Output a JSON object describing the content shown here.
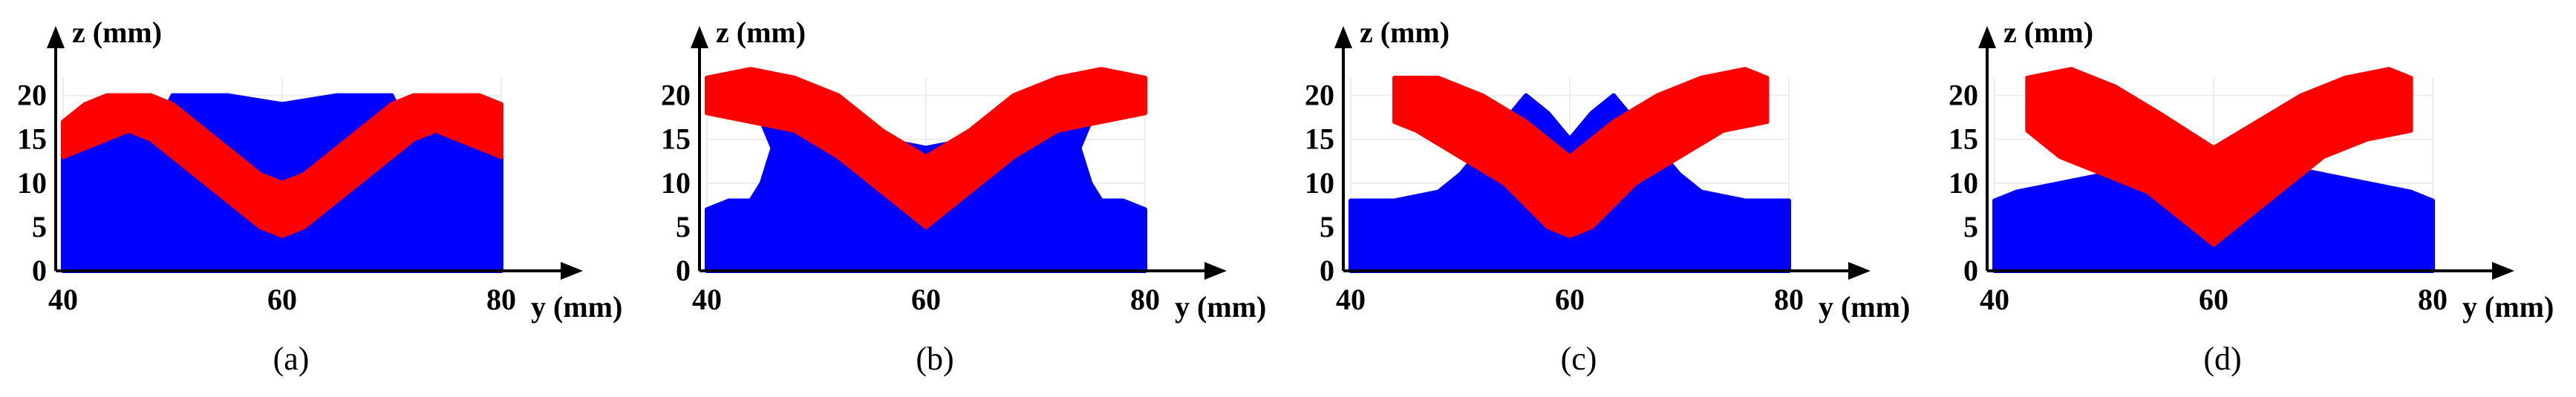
{
  "colors": {
    "substrate": "#0000ff",
    "deposit": "#ff0000",
    "axis": "#000000",
    "grid": "#ececec"
  },
  "chart_data": [
    {
      "type": "area",
      "caption": "(a)",
      "xlabel": "y (mm)",
      "ylabel": "z (mm)",
      "xlim": [
        40,
        80
      ],
      "ylim": [
        0,
        22
      ],
      "xticks": [
        40,
        60,
        80
      ],
      "yticks": [
        0,
        5,
        10,
        15,
        20
      ],
      "series": [
        {
          "role": "substrate",
          "points": [
            [
              40,
              0
            ],
            [
              40,
              13
            ],
            [
              42,
              14
            ],
            [
              44,
              15
            ],
            [
              46,
              16
            ],
            [
              48,
              15
            ],
            [
              50,
              20
            ],
            [
              55,
              20
            ],
            [
              60,
              19
            ],
            [
              65,
              20
            ],
            [
              70,
              20
            ],
            [
              72,
              15
            ],
            [
              74,
              16
            ],
            [
              76,
              15
            ],
            [
              78,
              14
            ],
            [
              80,
              13
            ],
            [
              80,
              0
            ]
          ]
        },
        {
          "role": "deposit",
          "points": [
            [
              40,
              17
            ],
            [
              42,
              19
            ],
            [
              44,
              20
            ],
            [
              46,
              20
            ],
            [
              48,
              20
            ],
            [
              50,
              19
            ],
            [
              52,
              17
            ],
            [
              54,
              15
            ],
            [
              56,
              13
            ],
            [
              58,
              11
            ],
            [
              60,
              10
            ],
            [
              62,
              11
            ],
            [
              64,
              13
            ],
            [
              66,
              15
            ],
            [
              68,
              17
            ],
            [
              70,
              19
            ],
            [
              72,
              20
            ],
            [
              74,
              20
            ],
            [
              76,
              20
            ],
            [
              78,
              20
            ],
            [
              80,
              19
            ],
            [
              80,
              13
            ],
            [
              78,
              14
            ],
            [
              76,
              15
            ],
            [
              74,
              16
            ],
            [
              72,
              15
            ],
            [
              70,
              13
            ],
            [
              68,
              11
            ],
            [
              66,
              9
            ],
            [
              64,
              7
            ],
            [
              62,
              5
            ],
            [
              60,
              4
            ],
            [
              58,
              5
            ],
            [
              56,
              7
            ],
            [
              54,
              9
            ],
            [
              52,
              11
            ],
            [
              50,
              13
            ],
            [
              48,
              15
            ],
            [
              46,
              16
            ],
            [
              44,
              15
            ],
            [
              42,
              14
            ],
            [
              40,
              13
            ]
          ]
        }
      ]
    },
    {
      "type": "area",
      "caption": "(b)",
      "xlabel": "y (mm)",
      "ylabel": "z (mm)",
      "xlim": [
        40,
        80
      ],
      "ylim": [
        0,
        22
      ],
      "xticks": [
        40,
        60,
        80
      ],
      "yticks": [
        0,
        5,
        10,
        15,
        20
      ],
      "series": [
        {
          "role": "substrate",
          "points": [
            [
              40,
              0
            ],
            [
              40,
              7
            ],
            [
              42,
              8
            ],
            [
              44,
              8
            ],
            [
              45,
              10
            ],
            [
              46,
              14
            ],
            [
              45,
              17
            ],
            [
              47,
              21
            ],
            [
              49,
              19
            ],
            [
              52,
              17
            ],
            [
              56,
              15
            ],
            [
              60,
              14
            ],
            [
              64,
              15
            ],
            [
              68,
              17
            ],
            [
              71,
              19
            ],
            [
              73,
              21
            ],
            [
              75,
              17
            ],
            [
              74,
              14
            ],
            [
              75,
              10
            ],
            [
              76,
              8
            ],
            [
              78,
              8
            ],
            [
              80,
              7
            ],
            [
              80,
              0
            ]
          ]
        },
        {
          "role": "deposit",
          "points": [
            [
              40,
              18
            ],
            [
              40,
              22
            ],
            [
              44,
              23
            ],
            [
              48,
              22
            ],
            [
              52,
              20
            ],
            [
              56,
              16
            ],
            [
              60,
              13
            ],
            [
              64,
              16
            ],
            [
              68,
              20
            ],
            [
              72,
              22
            ],
            [
              76,
              23
            ],
            [
              80,
              22
            ],
            [
              80,
              18
            ],
            [
              76,
              17
            ],
            [
              72,
              16
            ],
            [
              68,
              13
            ],
            [
              64,
              9
            ],
            [
              60,
              5
            ],
            [
              56,
              9
            ],
            [
              52,
              13
            ],
            [
              48,
              16
            ],
            [
              44,
              17
            ]
          ]
        }
      ]
    },
    {
      "type": "area",
      "caption": "(c)",
      "xlabel": "y (mm)",
      "ylabel": "z (mm)",
      "xlim": [
        40,
        80
      ],
      "ylim": [
        0,
        22
      ],
      "xticks": [
        40,
        60,
        80
      ],
      "yticks": [
        0,
        5,
        10,
        15,
        20
      ],
      "series": [
        {
          "role": "substrate",
          "points": [
            [
              40,
              0
            ],
            [
              40,
              8
            ],
            [
              44,
              8
            ],
            [
              48,
              9
            ],
            [
              50,
              11
            ],
            [
              52,
              14
            ],
            [
              54,
              17
            ],
            [
              56,
              20
            ],
            [
              58,
              18
            ],
            [
              60,
              15
            ],
            [
              62,
              18
            ],
            [
              64,
              20
            ],
            [
              66,
              17
            ],
            [
              68,
              14
            ],
            [
              70,
              11
            ],
            [
              72,
              9
            ],
            [
              76,
              8
            ],
            [
              80,
              8
            ],
            [
              80,
              0
            ]
          ]
        },
        {
          "role": "deposit",
          "points": [
            [
              44,
              17
            ],
            [
              44,
              22
            ],
            [
              48,
              22
            ],
            [
              52,
              20
            ],
            [
              56,
              17
            ],
            [
              60,
              13
            ],
            [
              64,
              17
            ],
            [
              68,
              20
            ],
            [
              72,
              22
            ],
            [
              76,
              23
            ],
            [
              78,
              22
            ],
            [
              78,
              17
            ],
            [
              74,
              16
            ],
            [
              70,
              13
            ],
            [
              66,
              10
            ],
            [
              62,
              5
            ],
            [
              60,
              4
            ],
            [
              58,
              5
            ],
            [
              54,
              10
            ],
            [
              50,
              13
            ],
            [
              46,
              16
            ]
          ]
        }
      ]
    },
    {
      "type": "area",
      "caption": "(d)",
      "xlabel": "y (mm)",
      "ylabel": "z (mm)",
      "xlim": [
        40,
        80
      ],
      "ylim": [
        0,
        22
      ],
      "xticks": [
        40,
        60,
        80
      ],
      "yticks": [
        0,
        5,
        10,
        15,
        20
      ],
      "series": [
        {
          "role": "substrate",
          "points": [
            [
              40,
              0
            ],
            [
              40,
              8
            ],
            [
              42,
              9
            ],
            [
              46,
              10
            ],
            [
              50,
              11
            ],
            [
              54,
              12
            ],
            [
              58,
              12
            ],
            [
              60,
              12
            ],
            [
              62,
              12
            ],
            [
              66,
              12
            ],
            [
              70,
              11
            ],
            [
              74,
              10
            ],
            [
              78,
              9
            ],
            [
              80,
              8
            ],
            [
              80,
              0
            ]
          ]
        },
        {
          "role": "deposit",
          "points": [
            [
              43,
              16
            ],
            [
              43,
              22
            ],
            [
              47,
              23
            ],
            [
              51,
              21
            ],
            [
              55,
              18
            ],
            [
              60,
              14
            ],
            [
              64,
              17
            ],
            [
              68,
              20
            ],
            [
              72,
              22
            ],
            [
              76,
              23
            ],
            [
              78,
              22
            ],
            [
              78,
              16
            ],
            [
              74,
              15
            ],
            [
              70,
              13
            ],
            [
              66,
              9
            ],
            [
              62,
              5
            ],
            [
              60,
              3
            ],
            [
              58,
              5
            ],
            [
              54,
              9
            ],
            [
              50,
              11
            ],
            [
              46,
              13
            ]
          ]
        }
      ]
    }
  ]
}
